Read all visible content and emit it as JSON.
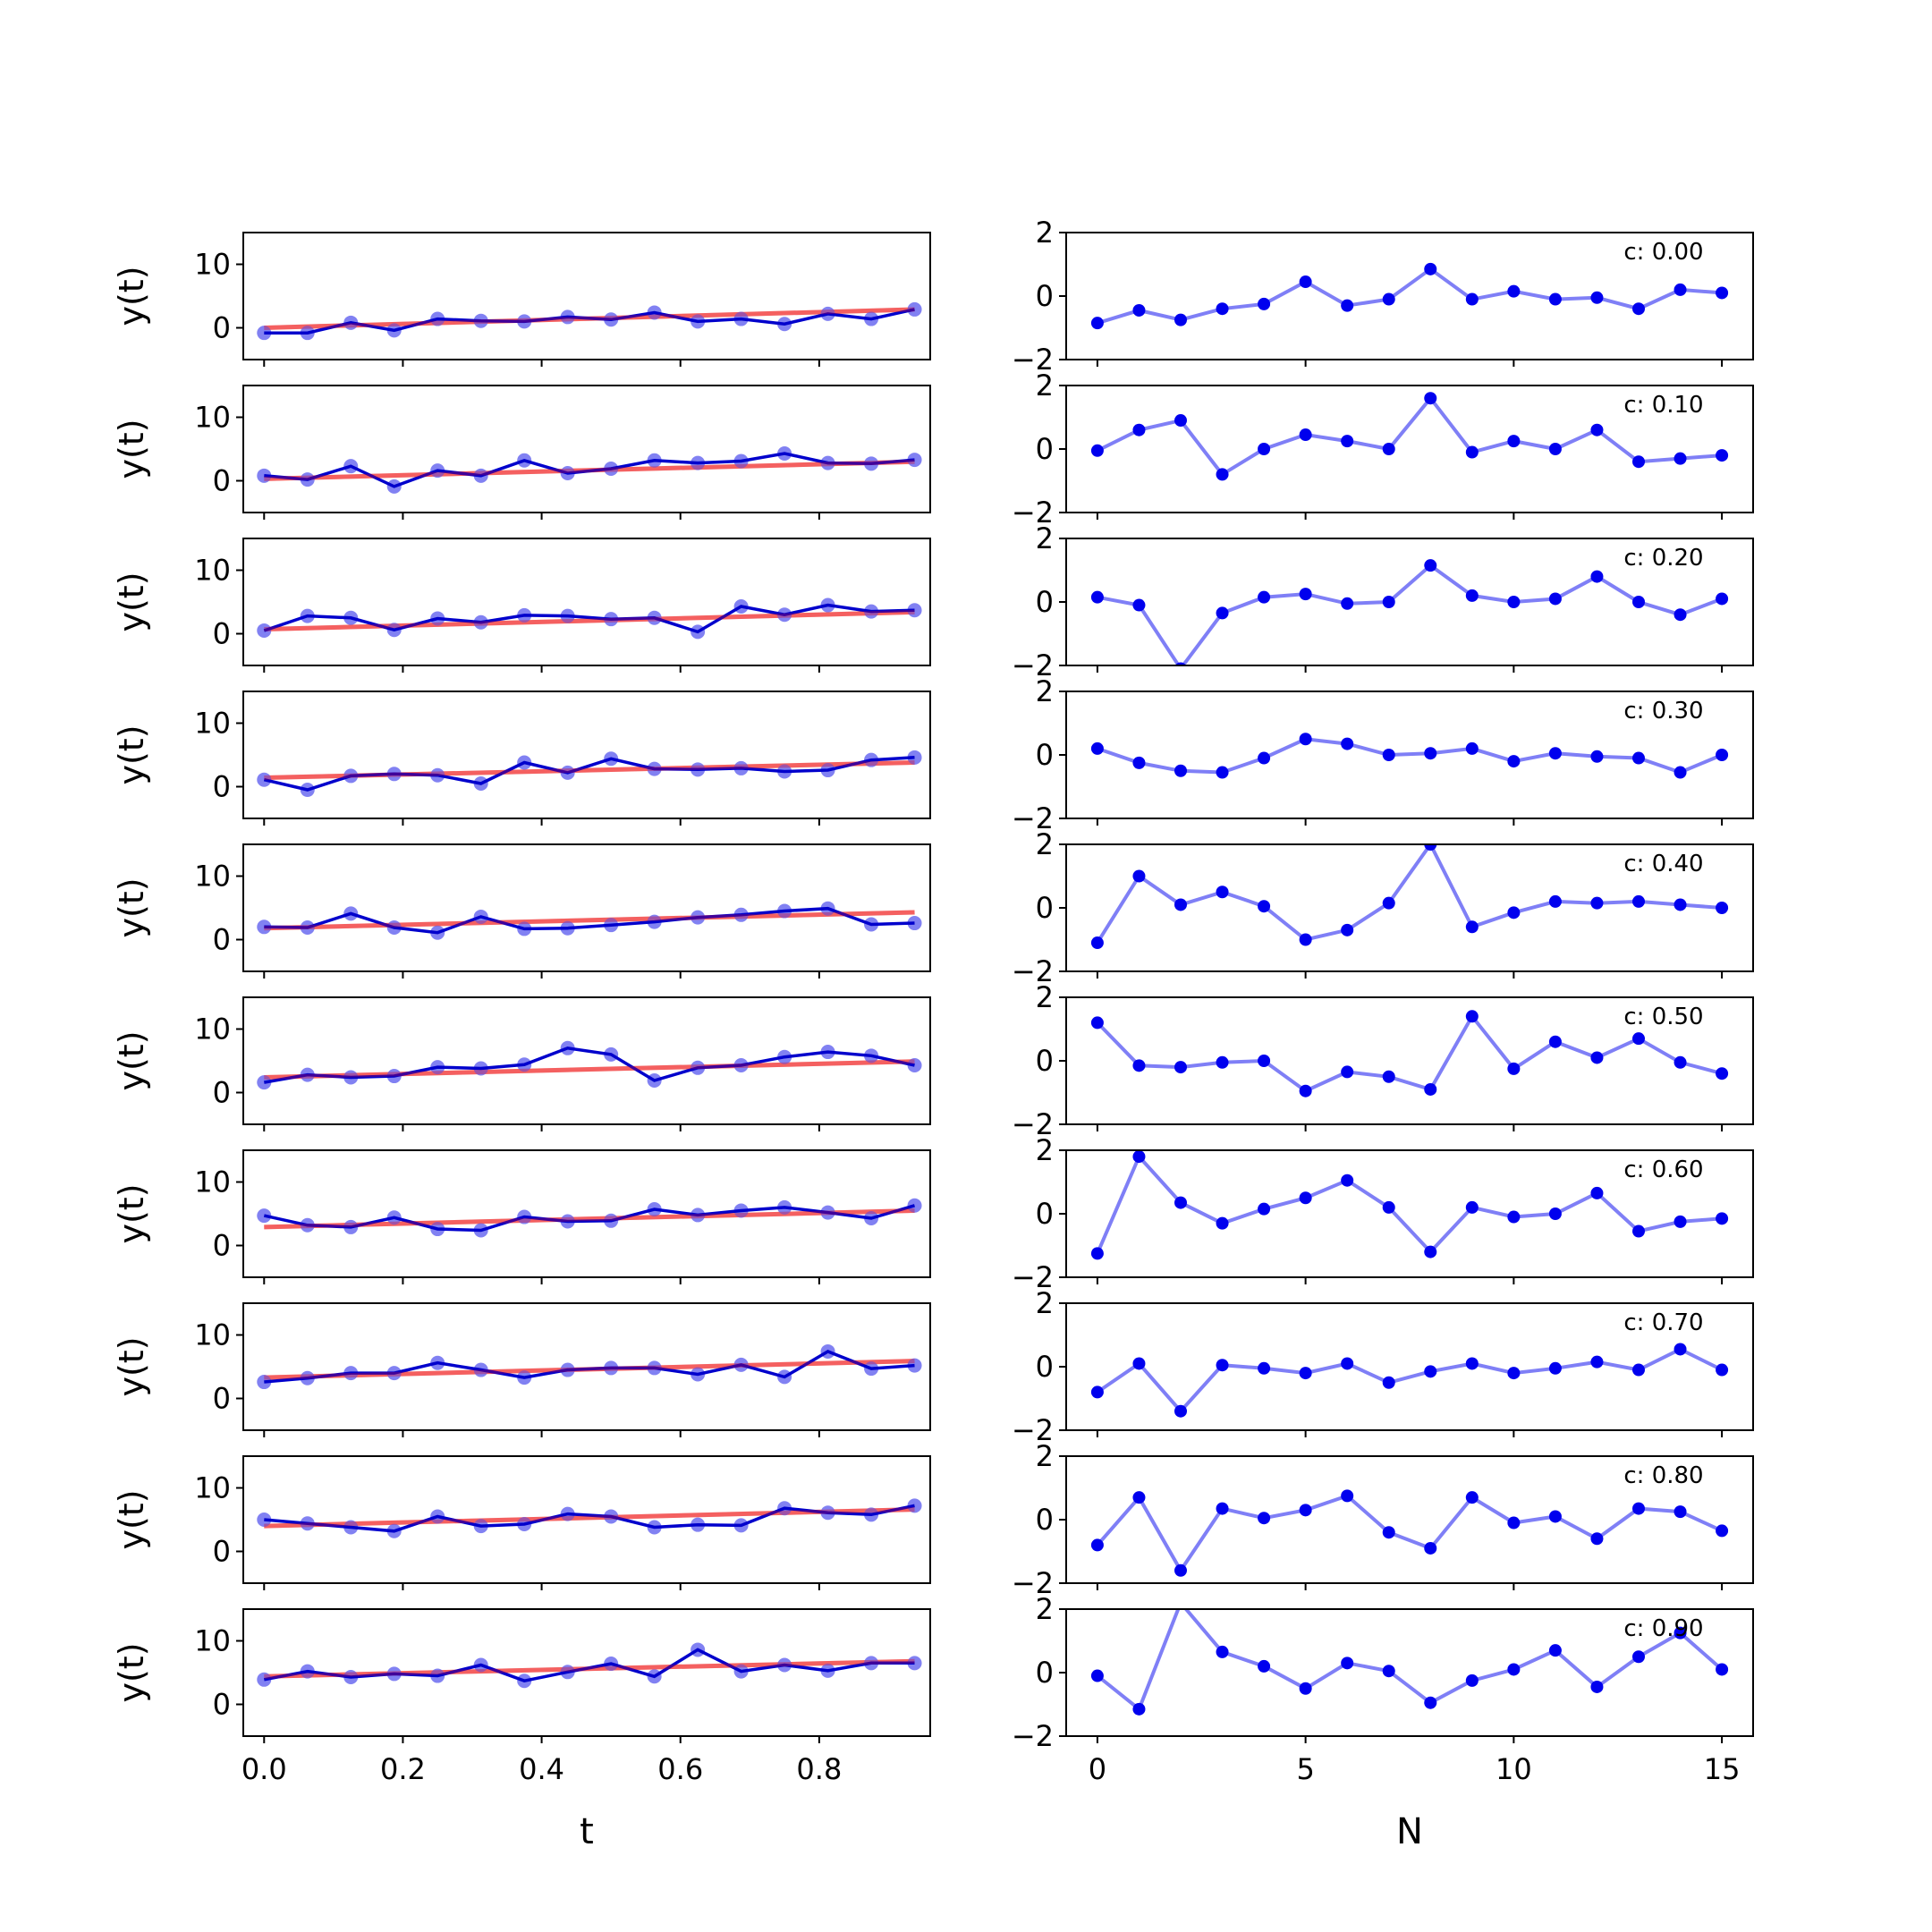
{
  "chart_data": [
    {
      "panel": "left",
      "row": 0,
      "type": "line",
      "xlabel": "",
      "ylabel": "y(t)",
      "ylim": [
        -5,
        15
      ],
      "yticks": [
        0,
        10
      ],
      "xlim": [
        -0.03,
        0.96
      ],
      "xticks": [
        0,
        0.2,
        0.4,
        0.6,
        0.8
      ],
      "x": [
        0,
        0.0625,
        0.125,
        0.1875,
        0.25,
        0.3125,
        0.375,
        0.4375,
        0.5,
        0.5625,
        0.625,
        0.6875,
        0.75,
        0.8125,
        0.875,
        0.9375
      ],
      "series": [
        {
          "values": [
            -0.8,
            -0.8,
            0.8,
            -0.4,
            1.4,
            1.1,
            1.0,
            1.7,
            1.3,
            2.4,
            1.0,
            1.4,
            0.6,
            2.2,
            1.4,
            2.9
          ],
          "fit": [
            0.0,
            2.9
          ]
        }
      ]
    },
    {
      "panel": "left",
      "row": 1,
      "type": "line",
      "xlabel": "",
      "ylabel": "y(t)",
      "ylim": [
        -5,
        15
      ],
      "yticks": [
        0,
        10
      ],
      "xlim": [
        -0.03,
        0.96
      ],
      "xticks": [
        0,
        0.2,
        0.4,
        0.6,
        0.8
      ],
      "x": [
        0,
        0.0625,
        0.125,
        0.1875,
        0.25,
        0.3125,
        0.375,
        0.4375,
        0.5,
        0.5625,
        0.625,
        0.6875,
        0.75,
        0.8125,
        0.875,
        0.9375
      ],
      "series": [
        {
          "values": [
            0.8,
            0.2,
            2.3,
            -0.9,
            1.6,
            0.8,
            3.2,
            1.2,
            1.9,
            3.2,
            2.8,
            3.1,
            4.3,
            2.8,
            2.7,
            3.3
          ],
          "fit": [
            0.3,
            3.0
          ]
        }
      ]
    },
    {
      "panel": "left",
      "row": 2,
      "type": "line",
      "xlabel": "",
      "ylabel": "y(t)",
      "ylim": [
        -5,
        15
      ],
      "yticks": [
        0,
        10
      ],
      "xlim": [
        -0.03,
        0.96
      ],
      "xticks": [
        0,
        0.2,
        0.4,
        0.6,
        0.8
      ],
      "x": [
        0,
        0.0625,
        0.125,
        0.1875,
        0.25,
        0.3125,
        0.375,
        0.4375,
        0.5,
        0.5625,
        0.625,
        0.6875,
        0.75,
        0.8125,
        0.875,
        0.9375
      ],
      "series": [
        {
          "values": [
            0.5,
            2.8,
            2.5,
            0.6,
            2.4,
            1.8,
            2.9,
            2.8,
            2.3,
            2.5,
            0.3,
            4.3,
            3.0,
            4.5,
            3.5,
            3.7
          ],
          "fit": [
            0.7,
            3.4
          ]
        }
      ]
    },
    {
      "panel": "left",
      "row": 3,
      "type": "line",
      "xlabel": "",
      "ylabel": "y(t)",
      "ylim": [
        -5,
        15
      ],
      "yticks": [
        0,
        10
      ],
      "xlim": [
        -0.03,
        0.96
      ],
      "xticks": [
        0,
        0.2,
        0.4,
        0.6,
        0.8
      ],
      "x": [
        0,
        0.0625,
        0.125,
        0.1875,
        0.25,
        0.3125,
        0.375,
        0.4375,
        0.5,
        0.5625,
        0.625,
        0.6875,
        0.75,
        0.8125,
        0.875,
        0.9375
      ],
      "series": [
        {
          "values": [
            1.1,
            -0.5,
            1.7,
            2.0,
            1.8,
            0.5,
            3.8,
            2.2,
            4.4,
            2.8,
            2.7,
            2.9,
            2.4,
            2.6,
            4.2,
            4.6
          ],
          "fit": [
            1.4,
            3.8
          ]
        }
      ]
    },
    {
      "panel": "left",
      "row": 4,
      "type": "line",
      "xlabel": "",
      "ylabel": "y(t)",
      "ylim": [
        -5,
        15
      ],
      "yticks": [
        0,
        10
      ],
      "xlim": [
        -0.03,
        0.96
      ],
      "xticks": [
        0,
        0.2,
        0.4,
        0.6,
        0.8
      ],
      "x": [
        0,
        0.0625,
        0.125,
        0.1875,
        0.25,
        0.3125,
        0.375,
        0.4375,
        0.5,
        0.5625,
        0.625,
        0.6875,
        0.75,
        0.8125,
        0.875,
        0.9375
      ],
      "series": [
        {
          "values": [
            2.0,
            1.9,
            4.1,
            1.9,
            1.1,
            3.6,
            1.7,
            1.8,
            2.3,
            2.8,
            3.5,
            3.9,
            4.5,
            4.9,
            2.4,
            2.6
          ],
          "fit": [
            1.8,
            4.3
          ]
        }
      ]
    },
    {
      "panel": "left",
      "row": 5,
      "type": "line",
      "xlabel": "",
      "ylabel": "y(t)",
      "ylim": [
        -5,
        15
      ],
      "yticks": [
        0,
        10
      ],
      "xlim": [
        -0.03,
        0.96
      ],
      "xticks": [
        0,
        0.2,
        0.4,
        0.6,
        0.8
      ],
      "x": [
        0,
        0.0625,
        0.125,
        0.1875,
        0.25,
        0.3125,
        0.375,
        0.4375,
        0.5,
        0.5625,
        0.625,
        0.6875,
        0.75,
        0.8125,
        0.875,
        0.9375
      ],
      "series": [
        {
          "values": [
            1.6,
            2.8,
            2.4,
            2.6,
            4.0,
            3.8,
            4.4,
            7.0,
            6.0,
            1.9,
            3.9,
            4.3,
            5.6,
            6.4,
            5.8,
            4.3
          ],
          "fit": [
            2.4,
            4.9
          ]
        }
      ]
    },
    {
      "panel": "left",
      "row": 6,
      "type": "line",
      "xlabel": "",
      "ylabel": "y(t)",
      "ylim": [
        -5,
        15
      ],
      "yticks": [
        0,
        10
      ],
      "xlim": [
        -0.03,
        0.96
      ],
      "xticks": [
        0,
        0.2,
        0.4,
        0.6,
        0.8
      ],
      "x": [
        0,
        0.0625,
        0.125,
        0.1875,
        0.25,
        0.3125,
        0.375,
        0.4375,
        0.5,
        0.5625,
        0.625,
        0.6875,
        0.75,
        0.8125,
        0.875,
        0.9375
      ],
      "series": [
        {
          "values": [
            4.7,
            3.2,
            2.9,
            4.4,
            2.6,
            2.4,
            4.5,
            3.8,
            3.9,
            5.7,
            4.8,
            5.5,
            6.0,
            5.2,
            4.3,
            6.3
          ],
          "fit": [
            2.9,
            5.5
          ]
        }
      ]
    },
    {
      "panel": "left",
      "row": 7,
      "type": "line",
      "xlabel": "",
      "ylabel": "y(t)",
      "ylim": [
        -5,
        15
      ],
      "yticks": [
        0,
        10
      ],
      "xlim": [
        -0.03,
        0.96
      ],
      "xticks": [
        0,
        0.2,
        0.4,
        0.6,
        0.8
      ],
      "x": [
        0,
        0.0625,
        0.125,
        0.1875,
        0.25,
        0.3125,
        0.375,
        0.4375,
        0.5,
        0.5625,
        0.625,
        0.6875,
        0.75,
        0.8125,
        0.875,
        0.9375
      ],
      "series": [
        {
          "values": [
            2.6,
            3.2,
            4.0,
            4.0,
            5.6,
            4.5,
            3.3,
            4.5,
            4.8,
            4.8,
            3.8,
            5.3,
            3.4,
            7.4,
            4.7,
            5.2
          ],
          "fit": [
            3.3,
            5.9
          ]
        }
      ]
    },
    {
      "panel": "left",
      "row": 8,
      "type": "line",
      "xlabel": "",
      "ylabel": "y(t)",
      "ylim": [
        -5,
        15
      ],
      "yticks": [
        0,
        10
      ],
      "xlim": [
        -0.03,
        0.96
      ],
      "xticks": [
        0,
        0.2,
        0.4,
        0.6,
        0.8
      ],
      "x": [
        0,
        0.0625,
        0.125,
        0.1875,
        0.25,
        0.3125,
        0.375,
        0.4375,
        0.5,
        0.5625,
        0.625,
        0.6875,
        0.75,
        0.8125,
        0.875,
        0.9375
      ],
      "series": [
        {
          "values": [
            5.0,
            4.4,
            3.8,
            3.2,
            5.5,
            4.0,
            4.3,
            5.9,
            5.5,
            3.8,
            4.2,
            4.1,
            6.8,
            6.1,
            5.8,
            7.2
          ],
          "fit": [
            4.0,
            6.6
          ]
        }
      ]
    },
    {
      "panel": "left",
      "row": 9,
      "type": "line",
      "xlabel": "t",
      "ylabel": "y(t)",
      "ylim": [
        -5,
        15
      ],
      "yticks": [
        0,
        10
      ],
      "xlim": [
        -0.03,
        0.96
      ],
      "xticks": [
        0,
        0.2,
        0.4,
        0.6,
        0.8
      ],
      "xticklabels": [
        "0.0",
        "0.2",
        "0.4",
        "0.6",
        "0.8"
      ],
      "x": [
        0,
        0.0625,
        0.125,
        0.1875,
        0.25,
        0.3125,
        0.375,
        0.4375,
        0.5,
        0.5625,
        0.625,
        0.6875,
        0.75,
        0.8125,
        0.875,
        0.9375
      ],
      "series": [
        {
          "values": [
            3.9,
            5.2,
            4.3,
            4.8,
            4.5,
            6.2,
            3.7,
            5.1,
            6.4,
            4.4,
            8.6,
            5.2,
            6.2,
            5.3,
            6.5,
            6.5
          ],
          "fit": [
            4.4,
            6.8
          ]
        }
      ]
    },
    {
      "panel": "right",
      "row": 0,
      "type": "line",
      "xlabel": "",
      "ylabel": "",
      "ylim": [
        -2,
        2
      ],
      "yticks": [
        -2,
        0,
        2
      ],
      "xlim": [
        -0.75,
        15.75
      ],
      "xticks": [
        0,
        5,
        10,
        15
      ],
      "annotation": "c: 0.00",
      "x": [
        0,
        1,
        2,
        3,
        4,
        5,
        6,
        7,
        8,
        9,
        10,
        11,
        12,
        13,
        14,
        15
      ],
      "series": [
        {
          "values": [
            -0.85,
            -0.45,
            -0.75,
            -0.4,
            -0.25,
            0.45,
            -0.3,
            -0.1,
            0.85,
            -0.1,
            0.15,
            -0.1,
            -0.05,
            -0.4,
            0.2,
            0.1
          ]
        }
      ]
    },
    {
      "panel": "right",
      "row": 1,
      "type": "line",
      "xlabel": "",
      "ylabel": "",
      "ylim": [
        -2,
        2
      ],
      "yticks": [
        -2,
        0,
        2
      ],
      "xlim": [
        -0.75,
        15.75
      ],
      "xticks": [
        0,
        5,
        10,
        15
      ],
      "annotation": "c: 0.10",
      "x": [
        0,
        1,
        2,
        3,
        4,
        5,
        6,
        7,
        8,
        9,
        10,
        11,
        12,
        13,
        14,
        15
      ],
      "series": [
        {
          "values": [
            -0.05,
            0.6,
            0.9,
            -0.8,
            0.0,
            0.45,
            0.25,
            0.0,
            1.6,
            -0.1,
            0.25,
            0.0,
            0.6,
            -0.4,
            -0.3,
            -0.2
          ]
        }
      ]
    },
    {
      "panel": "right",
      "row": 2,
      "type": "line",
      "xlabel": "",
      "ylabel": "",
      "ylim": [
        -2,
        2
      ],
      "yticks": [
        -2,
        0,
        2
      ],
      "xlim": [
        -0.75,
        15.75
      ],
      "xticks": [
        0,
        5,
        10,
        15
      ],
      "annotation": "c: 0.20",
      "x": [
        0,
        1,
        2,
        3,
        4,
        5,
        6,
        7,
        8,
        9,
        10,
        11,
        12,
        13,
        14,
        15
      ],
      "series": [
        {
          "values": [
            0.15,
            -0.1,
            -2.1,
            -0.35,
            0.15,
            0.25,
            -0.05,
            0.0,
            1.15,
            0.2,
            0.0,
            0.1,
            0.8,
            0.0,
            -0.4,
            0.1
          ]
        }
      ]
    },
    {
      "panel": "right",
      "row": 3,
      "type": "line",
      "xlabel": "",
      "ylabel": "",
      "ylim": [
        -2,
        2
      ],
      "yticks": [
        -2,
        0,
        2
      ],
      "xlim": [
        -0.75,
        15.75
      ],
      "xticks": [
        0,
        5,
        10,
        15
      ],
      "annotation": "c: 0.30",
      "x": [
        0,
        1,
        2,
        3,
        4,
        5,
        6,
        7,
        8,
        9,
        10,
        11,
        12,
        13,
        14,
        15
      ],
      "series": [
        {
          "values": [
            0.2,
            -0.25,
            -0.5,
            -0.55,
            -0.1,
            0.5,
            0.35,
            0.0,
            0.05,
            0.2,
            -0.2,
            0.05,
            -0.05,
            -0.1,
            -0.55,
            0.0
          ]
        }
      ]
    },
    {
      "panel": "right",
      "row": 4,
      "type": "line",
      "xlabel": "",
      "ylabel": "",
      "ylim": [
        -2,
        2
      ],
      "yticks": [
        -2,
        0,
        2
      ],
      "xlim": [
        -0.75,
        15.75
      ],
      "xticks": [
        0,
        5,
        10,
        15
      ],
      "annotation": "c: 0.40",
      "x": [
        0,
        1,
        2,
        3,
        4,
        5,
        6,
        7,
        8,
        9,
        10,
        11,
        12,
        13,
        14,
        15
      ],
      "series": [
        {
          "values": [
            -1.1,
            1.0,
            0.1,
            0.5,
            0.05,
            -1.0,
            -0.7,
            0.15,
            2.0,
            -0.6,
            -0.15,
            0.2,
            0.15,
            0.2,
            0.1,
            0.0
          ]
        }
      ]
    },
    {
      "panel": "right",
      "row": 5,
      "type": "line",
      "xlabel": "",
      "ylabel": "",
      "ylim": [
        -2,
        2
      ],
      "yticks": [
        -2,
        0,
        2
      ],
      "xlim": [
        -0.75,
        15.75
      ],
      "xticks": [
        0,
        5,
        10,
        15
      ],
      "annotation": "c: 0.50",
      "x": [
        0,
        1,
        2,
        3,
        4,
        5,
        6,
        7,
        8,
        9,
        10,
        11,
        12,
        13,
        14,
        15
      ],
      "series": [
        {
          "values": [
            1.2,
            -0.15,
            -0.2,
            -0.05,
            0.0,
            -0.95,
            -0.35,
            -0.5,
            -0.9,
            1.4,
            -0.25,
            0.6,
            0.1,
            0.7,
            -0.05,
            -0.4
          ]
        }
      ]
    },
    {
      "panel": "right",
      "row": 6,
      "type": "line",
      "xlabel": "",
      "ylabel": "",
      "ylim": [
        -2,
        2
      ],
      "yticks": [
        -2,
        0,
        2
      ],
      "xlim": [
        -0.75,
        15.75
      ],
      "xticks": [
        0,
        5,
        10,
        15
      ],
      "annotation": "c: 0.60",
      "x": [
        0,
        1,
        2,
        3,
        4,
        5,
        6,
        7,
        8,
        9,
        10,
        11,
        12,
        13,
        14,
        15
      ],
      "series": [
        {
          "values": [
            -1.25,
            1.8,
            0.35,
            -0.3,
            0.15,
            0.5,
            1.05,
            0.2,
            -1.2,
            0.2,
            -0.1,
            0.0,
            0.65,
            -0.55,
            -0.25,
            -0.15
          ]
        }
      ]
    },
    {
      "panel": "right",
      "row": 7,
      "type": "line",
      "xlabel": "",
      "ylabel": "",
      "ylim": [
        -2,
        2
      ],
      "yticks": [
        -2,
        0,
        2
      ],
      "xlim": [
        -0.75,
        15.75
      ],
      "xticks": [
        0,
        5,
        10,
        15
      ],
      "annotation": "c: 0.70",
      "x": [
        0,
        1,
        2,
        3,
        4,
        5,
        6,
        7,
        8,
        9,
        10,
        11,
        12,
        13,
        14,
        15
      ],
      "series": [
        {
          "values": [
            -0.8,
            0.1,
            -1.4,
            0.05,
            -0.05,
            -0.2,
            0.1,
            -0.5,
            -0.15,
            0.1,
            -0.2,
            -0.05,
            0.15,
            -0.1,
            0.55,
            -0.1
          ]
        }
      ]
    },
    {
      "panel": "right",
      "row": 8,
      "type": "line",
      "xlabel": "",
      "ylabel": "",
      "ylim": [
        -2,
        2
      ],
      "yticks": [
        -2,
        0,
        2
      ],
      "xlim": [
        -0.75,
        15.75
      ],
      "xticks": [
        0,
        5,
        10,
        15
      ],
      "annotation": "c: 0.80",
      "x": [
        0,
        1,
        2,
        3,
        4,
        5,
        6,
        7,
        8,
        9,
        10,
        11,
        12,
        13,
        14,
        15
      ],
      "series": [
        {
          "values": [
            -0.8,
            0.7,
            -1.6,
            0.35,
            0.05,
            0.3,
            0.75,
            -0.4,
            -0.9,
            0.7,
            -0.1,
            0.1,
            -0.6,
            0.35,
            0.25,
            -0.35
          ]
        }
      ]
    },
    {
      "panel": "right",
      "row": 9,
      "type": "line",
      "xlabel": "N",
      "ylabel": "",
      "ylim": [
        -2,
        2
      ],
      "yticks": [
        -2,
        0,
        2
      ],
      "xlim": [
        -0.75,
        15.75
      ],
      "xticks": [
        0,
        5,
        10,
        15
      ],
      "annotation": "c: 0.90",
      "x": [
        0,
        1,
        2,
        3,
        4,
        5,
        6,
        7,
        8,
        9,
        10,
        11,
        12,
        13,
        14,
        15
      ],
      "series": [
        {
          "values": [
            -0.1,
            -1.15,
            2.2,
            0.65,
            0.2,
            -0.5,
            0.3,
            0.05,
            -0.95,
            -0.25,
            0.1,
            0.7,
            -0.45,
            0.5,
            1.25,
            0.1
          ]
        }
      ]
    }
  ]
}
